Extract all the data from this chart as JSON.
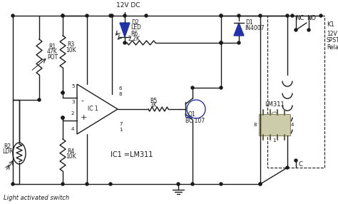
{
  "bg_color": "#ffffff",
  "line_color": "#1a1a1a",
  "blue_color": "#2233aa",
  "title": "Light activated switch",
  "ic_label": "IC1 =LM311",
  "lm311_label": "LM311",
  "figsize": [
    4.74,
    2.86
  ],
  "dpi": 100
}
